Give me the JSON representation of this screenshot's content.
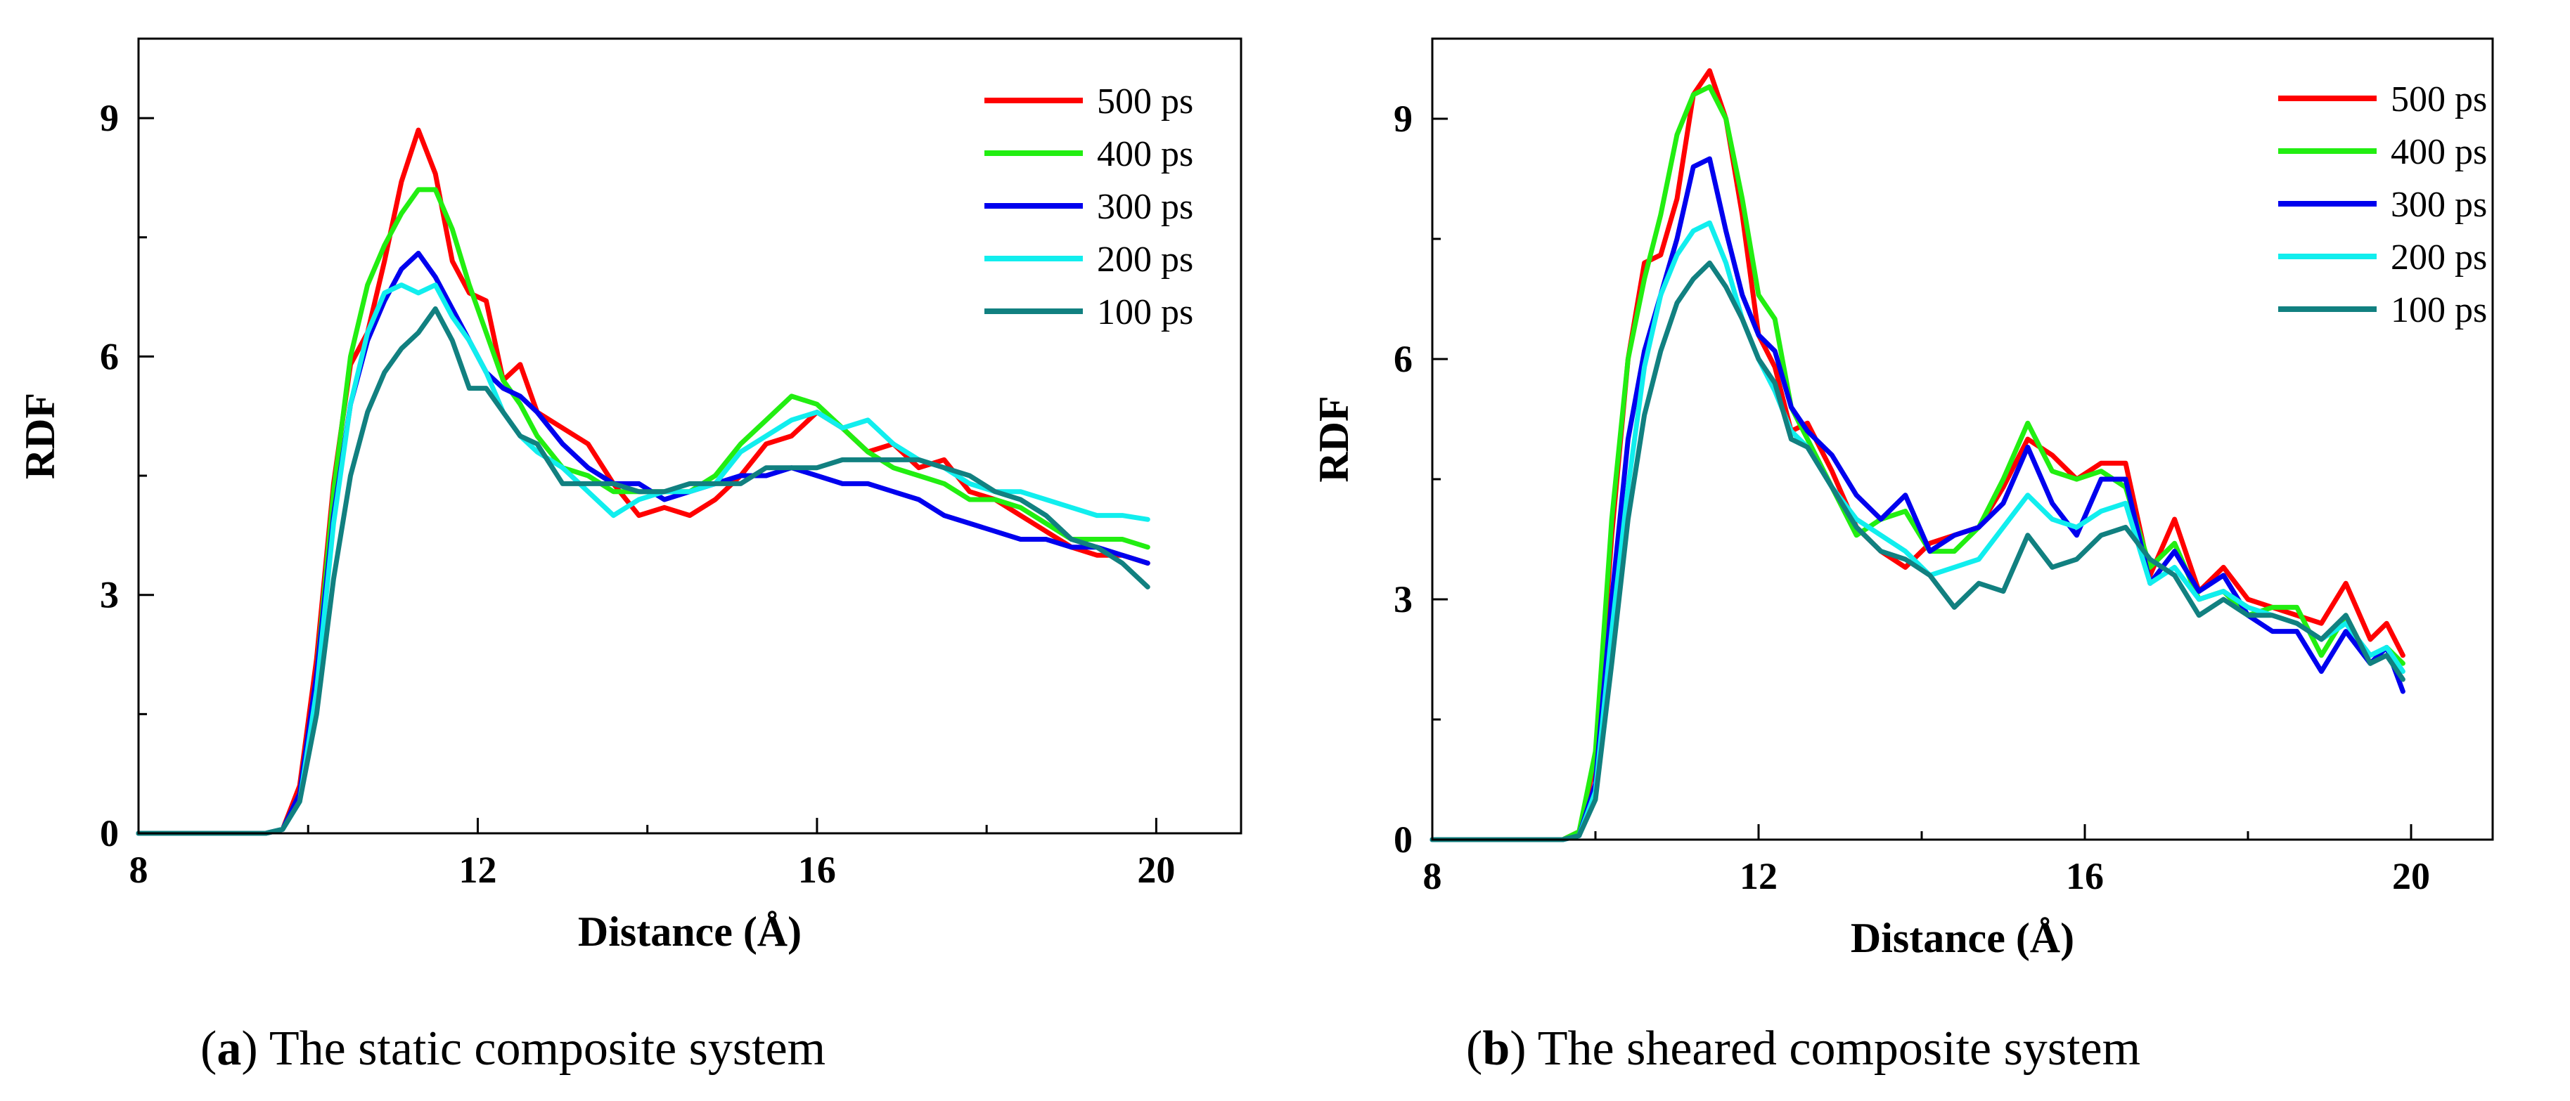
{
  "chart_data": [
    {
      "type": "line",
      "panel": "a",
      "caption_letter": "a",
      "caption_text": "The static composite system",
      "xlabel": "Distance (Å)",
      "ylabel": "RDF",
      "xlim": [
        8,
        21
      ],
      "ylim": [
        0,
        10
      ],
      "xticks": [
        8,
        12,
        16,
        20
      ],
      "yticks": [
        0,
        3,
        6,
        9
      ],
      "legend_position": "top-right",
      "series": [
        {
          "name": "500 ps",
          "color": "#ff0000",
          "x": [
            8,
            9,
            9.5,
            9.7,
            9.9,
            10.1,
            10.3,
            10.5,
            10.7,
            10.9,
            11.1,
            11.3,
            11.5,
            11.7,
            11.9,
            12.1,
            12.3,
            12.5,
            12.7,
            13,
            13.3,
            13.6,
            13.9,
            14.2,
            14.5,
            14.8,
            15.1,
            15.4,
            15.7,
            16,
            16.3,
            16.6,
            16.9,
            17.2,
            17.5,
            17.8,
            18.1,
            18.4,
            18.7,
            19,
            19.3,
            19.6,
            19.9
          ],
          "y": [
            0,
            0,
            0,
            0.05,
            0.6,
            2.2,
            4.4,
            5.9,
            6.3,
            7.2,
            8.2,
            8.85,
            8.3,
            7.2,
            6.8,
            6.7,
            5.7,
            5.9,
            5.3,
            5.1,
            4.9,
            4.4,
            4.0,
            4.1,
            4.0,
            4.2,
            4.5,
            4.9,
            5.0,
            5.3,
            5.1,
            4.8,
            4.9,
            4.6,
            4.7,
            4.3,
            4.2,
            4.0,
            3.8,
            3.6,
            3.5,
            3.5,
            3.4
          ]
        },
        {
          "name": "400 ps",
          "color": "#22ee11",
          "x": [
            8,
            9,
            9.5,
            9.7,
            9.9,
            10.1,
            10.3,
            10.5,
            10.7,
            10.9,
            11.1,
            11.3,
            11.5,
            11.7,
            11.9,
            12.1,
            12.3,
            12.5,
            12.7,
            13,
            13.3,
            13.6,
            13.9,
            14.2,
            14.5,
            14.8,
            15.1,
            15.4,
            15.7,
            16,
            16.3,
            16.6,
            16.9,
            17.2,
            17.5,
            17.8,
            18.1,
            18.4,
            18.7,
            19,
            19.3,
            19.6,
            19.9
          ],
          "y": [
            0,
            0,
            0,
            0.05,
            0.5,
            2.0,
            4.3,
            6.0,
            6.9,
            7.4,
            7.8,
            8.1,
            8.1,
            7.6,
            6.9,
            6.3,
            5.7,
            5.4,
            5.0,
            4.6,
            4.5,
            4.3,
            4.3,
            4.3,
            4.3,
            4.5,
            4.9,
            5.2,
            5.5,
            5.4,
            5.1,
            4.8,
            4.6,
            4.5,
            4.4,
            4.2,
            4.2,
            4.1,
            3.9,
            3.7,
            3.7,
            3.7,
            3.6
          ]
        },
        {
          "name": "300 ps",
          "color": "#0000ee",
          "x": [
            8,
            9,
            9.5,
            9.7,
            9.9,
            10.1,
            10.3,
            10.5,
            10.7,
            10.9,
            11.1,
            11.3,
            11.5,
            11.7,
            11.9,
            12.1,
            12.3,
            12.5,
            12.7,
            13,
            13.3,
            13.6,
            13.9,
            14.2,
            14.5,
            14.8,
            15.1,
            15.4,
            15.7,
            16,
            16.3,
            16.6,
            16.9,
            17.2,
            17.5,
            17.8,
            18.1,
            18.4,
            18.7,
            19,
            19.3,
            19.6,
            19.9
          ],
          "y": [
            0,
            0,
            0,
            0.05,
            0.5,
            2.0,
            4.0,
            5.4,
            6.2,
            6.7,
            7.1,
            7.3,
            7.0,
            6.6,
            6.2,
            5.8,
            5.6,
            5.5,
            5.3,
            4.9,
            4.6,
            4.4,
            4.4,
            4.2,
            4.3,
            4.4,
            4.5,
            4.5,
            4.6,
            4.5,
            4.4,
            4.4,
            4.3,
            4.2,
            4.0,
            3.9,
            3.8,
            3.7,
            3.7,
            3.6,
            3.6,
            3.5,
            3.4
          ]
        },
        {
          "name": "200 ps",
          "color": "#11eeee",
          "x": [
            8,
            9,
            9.5,
            9.7,
            9.9,
            10.1,
            10.3,
            10.5,
            10.7,
            10.9,
            11.1,
            11.3,
            11.5,
            11.7,
            11.9,
            12.1,
            12.3,
            12.5,
            12.7,
            13,
            13.3,
            13.6,
            13.9,
            14.2,
            14.5,
            14.8,
            15.1,
            15.4,
            15.7,
            16,
            16.3,
            16.6,
            16.9,
            17.2,
            17.5,
            17.8,
            18.1,
            18.4,
            18.7,
            19,
            19.3,
            19.6,
            19.9
          ],
          "y": [
            0,
            0,
            0,
            0.05,
            0.4,
            1.8,
            3.9,
            5.4,
            6.3,
            6.8,
            6.9,
            6.8,
            6.9,
            6.5,
            6.2,
            5.8,
            5.3,
            5.0,
            4.8,
            4.6,
            4.3,
            4.0,
            4.2,
            4.3,
            4.3,
            4.4,
            4.8,
            5.0,
            5.2,
            5.3,
            5.1,
            5.2,
            4.9,
            4.7,
            4.6,
            4.4,
            4.3,
            4.3,
            4.2,
            4.1,
            4.0,
            4.0,
            3.95
          ]
        },
        {
          "name": "100 ps",
          "color": "#118080",
          "x": [
            8,
            9,
            9.5,
            9.7,
            9.9,
            10.1,
            10.3,
            10.5,
            10.7,
            10.9,
            11.1,
            11.3,
            11.5,
            11.7,
            11.9,
            12.1,
            12.3,
            12.5,
            12.7,
            13,
            13.3,
            13.6,
            13.9,
            14.2,
            14.5,
            14.8,
            15.1,
            15.4,
            15.7,
            16,
            16.3,
            16.6,
            16.9,
            17.2,
            17.5,
            17.8,
            18.1,
            18.4,
            18.7,
            19,
            19.3,
            19.6,
            19.9
          ],
          "y": [
            0,
            0,
            0,
            0.05,
            0.4,
            1.5,
            3.2,
            4.5,
            5.3,
            5.8,
            6.1,
            6.3,
            6.6,
            6.2,
            5.6,
            5.6,
            5.3,
            5.0,
            4.9,
            4.4,
            4.4,
            4.4,
            4.3,
            4.3,
            4.4,
            4.4,
            4.4,
            4.6,
            4.6,
            4.6,
            4.7,
            4.7,
            4.7,
            4.7,
            4.6,
            4.5,
            4.3,
            4.2,
            4.0,
            3.7,
            3.6,
            3.4,
            3.1
          ]
        }
      ]
    },
    {
      "type": "line",
      "panel": "b",
      "caption_letter": "b",
      "caption_text": "The sheared composite system",
      "xlabel": "Distance (Å)",
      "ylabel": "RDF",
      "xlim": [
        8,
        21
      ],
      "ylim": [
        0,
        10
      ],
      "xticks": [
        8,
        12,
        16,
        20
      ],
      "yticks": [
        0,
        3,
        6,
        9
      ],
      "legend_position": "top-right",
      "series": [
        {
          "name": "500 ps",
          "color": "#ff0000",
          "x": [
            8,
            9,
            9.6,
            9.8,
            10,
            10.2,
            10.4,
            10.6,
            10.8,
            11,
            11.2,
            11.4,
            11.6,
            11.8,
            12,
            12.2,
            12.4,
            12.6,
            12.9,
            13.2,
            13.5,
            13.8,
            14.1,
            14.4,
            14.7,
            15,
            15.3,
            15.6,
            15.9,
            16.2,
            16.5,
            16.8,
            17.1,
            17.4,
            17.7,
            18,
            18.3,
            18.6,
            18.9,
            19.2,
            19.5,
            19.7,
            19.9
          ],
          "y": [
            0,
            0,
            0,
            0.1,
            1.0,
            3.8,
            6.0,
            7.2,
            7.3,
            8.0,
            9.3,
            9.6,
            9.0,
            7.8,
            6.3,
            5.9,
            5.1,
            5.2,
            4.6,
            3.9,
            3.6,
            3.4,
            3.7,
            3.8,
            3.9,
            4.4,
            5.0,
            4.8,
            4.5,
            4.7,
            4.7,
            3.3,
            4.0,
            3.1,
            3.4,
            3.0,
            2.9,
            2.8,
            2.7,
            3.2,
            2.5,
            2.7,
            2.3
          ]
        },
        {
          "name": "400 ps",
          "color": "#22ee11",
          "x": [
            8,
            9,
            9.6,
            9.8,
            10,
            10.2,
            10.4,
            10.6,
            10.8,
            11,
            11.2,
            11.4,
            11.6,
            11.8,
            12,
            12.2,
            12.4,
            12.6,
            12.9,
            13.2,
            13.5,
            13.8,
            14.1,
            14.4,
            14.7,
            15,
            15.3,
            15.6,
            15.9,
            16.2,
            16.5,
            16.8,
            17.1,
            17.4,
            17.7,
            18,
            18.3,
            18.6,
            18.9,
            19.2,
            19.5,
            19.7,
            19.9
          ],
          "y": [
            0,
            0,
            0,
            0.1,
            1.1,
            4.0,
            6.0,
            7.0,
            7.8,
            8.8,
            9.3,
            9.4,
            9.0,
            8.0,
            6.8,
            6.5,
            5.4,
            5.0,
            4.4,
            3.8,
            4.0,
            4.1,
            3.6,
            3.6,
            3.9,
            4.5,
            5.2,
            4.6,
            4.5,
            4.6,
            4.4,
            3.4,
            3.7,
            3.0,
            3.1,
            2.8,
            2.9,
            2.9,
            2.3,
            2.8,
            2.2,
            2.4,
            2.2
          ]
        },
        {
          "name": "300 ps",
          "color": "#0000ee",
          "x": [
            8,
            9,
            9.6,
            9.8,
            10,
            10.2,
            10.4,
            10.6,
            10.8,
            11,
            11.2,
            11.4,
            11.6,
            11.8,
            12,
            12.2,
            12.4,
            12.6,
            12.9,
            13.2,
            13.5,
            13.8,
            14.1,
            14.4,
            14.7,
            15,
            15.3,
            15.6,
            15.9,
            16.2,
            16.5,
            16.8,
            17.1,
            17.4,
            17.7,
            18,
            18.3,
            18.6,
            18.9,
            19.2,
            19.5,
            19.7,
            19.9
          ],
          "y": [
            0,
            0,
            0,
            0.05,
            0.7,
            3.0,
            5.0,
            6.1,
            6.8,
            7.5,
            8.4,
            8.5,
            7.6,
            6.8,
            6.3,
            6.1,
            5.4,
            5.1,
            4.8,
            4.3,
            4.0,
            4.3,
            3.6,
            3.8,
            3.9,
            4.2,
            4.9,
            4.2,
            3.8,
            4.5,
            4.5,
            3.2,
            3.6,
            3.1,
            3.3,
            2.8,
            2.6,
            2.6,
            2.1,
            2.6,
            2.2,
            2.4,
            1.85
          ]
        },
        {
          "name": "200 ps",
          "color": "#11eeee",
          "x": [
            8,
            9,
            9.6,
            9.8,
            10,
            10.2,
            10.4,
            10.6,
            10.8,
            11,
            11.2,
            11.4,
            11.6,
            11.8,
            12,
            12.2,
            12.4,
            12.6,
            12.9,
            13.2,
            13.5,
            13.8,
            14.1,
            14.4,
            14.7,
            15,
            15.3,
            15.6,
            15.9,
            16.2,
            16.5,
            16.8,
            17.1,
            17.4,
            17.7,
            18,
            18.3,
            18.6,
            18.9,
            19.2,
            19.5,
            19.7,
            19.9
          ],
          "y": [
            0,
            0,
            0,
            0.05,
            0.6,
            2.6,
            4.4,
            5.9,
            6.8,
            7.3,
            7.6,
            7.7,
            7.2,
            6.5,
            6.0,
            5.6,
            5.1,
            4.9,
            4.4,
            4.0,
            3.8,
            3.6,
            3.3,
            3.4,
            3.5,
            3.9,
            4.3,
            4.0,
            3.9,
            4.1,
            4.2,
            3.2,
            3.4,
            3.0,
            3.1,
            2.9,
            2.8,
            2.7,
            2.5,
            2.7,
            2.3,
            2.4,
            2.1
          ]
        },
        {
          "name": "100 ps",
          "color": "#118080",
          "x": [
            8,
            9,
            9.6,
            9.8,
            10,
            10.2,
            10.4,
            10.6,
            10.8,
            11,
            11.2,
            11.4,
            11.6,
            11.8,
            12,
            12.2,
            12.4,
            12.6,
            12.9,
            13.2,
            13.5,
            13.8,
            14.1,
            14.4,
            14.7,
            15,
            15.3,
            15.6,
            15.9,
            16.2,
            16.5,
            16.8,
            17.1,
            17.4,
            17.7,
            18,
            18.3,
            18.6,
            18.9,
            19.2,
            19.5,
            19.7,
            19.9
          ],
          "y": [
            0,
            0,
            0,
            0.05,
            0.5,
            2.2,
            4.0,
            5.3,
            6.1,
            6.7,
            7.0,
            7.2,
            6.9,
            6.5,
            6.0,
            5.7,
            5.0,
            4.9,
            4.4,
            3.9,
            3.6,
            3.5,
            3.3,
            2.9,
            3.2,
            3.1,
            3.8,
            3.4,
            3.5,
            3.8,
            3.9,
            3.5,
            3.3,
            2.8,
            3.0,
            2.8,
            2.8,
            2.7,
            2.5,
            2.8,
            2.2,
            2.3,
            2.0
          ]
        }
      ]
    }
  ]
}
